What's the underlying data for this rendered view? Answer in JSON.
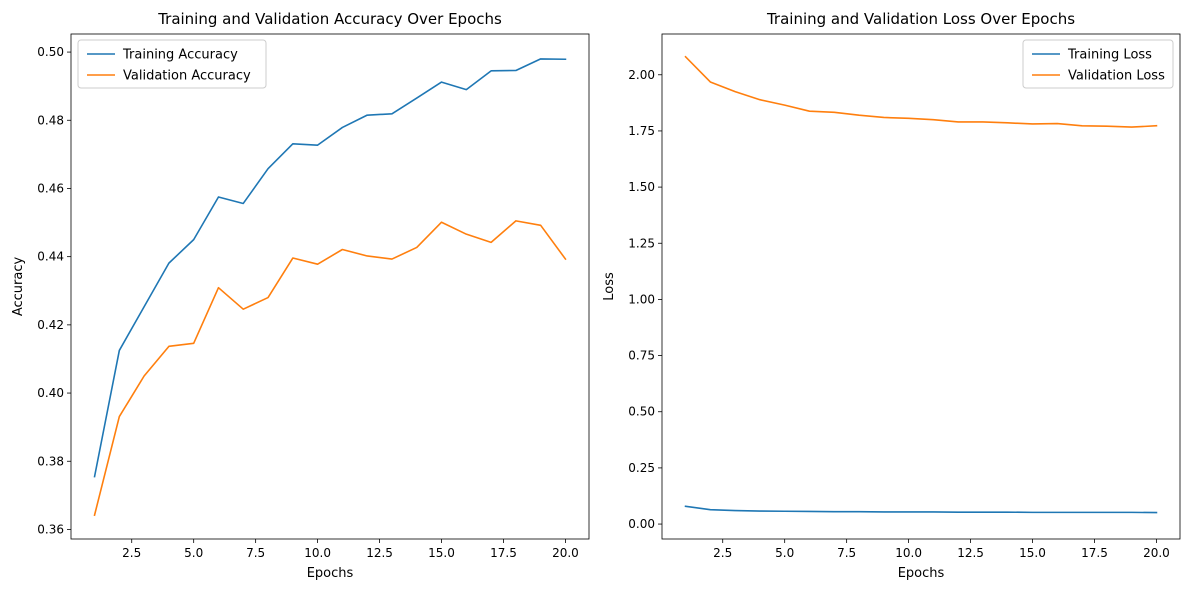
{
  "chart_data": [
    {
      "type": "line",
      "title": "Training and Validation Accuracy Over Epochs",
      "xlabel": "Epochs",
      "ylabel": "Accuracy",
      "xlim": [
        0.05,
        20.95
      ],
      "ylim": [
        0.3572,
        0.5053
      ],
      "xticks": [
        2.5,
        5.0,
        7.5,
        10.0,
        12.5,
        15.0,
        17.5,
        20.0
      ],
      "xtick_labels": [
        "2.5",
        "5.0",
        "7.5",
        "10.0",
        "12.5",
        "15.0",
        "17.5",
        "20.0"
      ],
      "yticks": [
        0.36,
        0.38,
        0.4,
        0.42,
        0.44,
        0.46,
        0.48,
        0.5
      ],
      "ytick_labels": [
        "0.36",
        "0.38",
        "0.40",
        "0.42",
        "0.44",
        "0.46",
        "0.48",
        "0.50"
      ],
      "legend_position": "upper-left",
      "x": [
        1,
        2,
        3,
        4,
        5,
        6,
        7,
        8,
        9,
        10,
        11,
        12,
        13,
        14,
        15,
        16,
        17,
        18,
        19,
        20
      ],
      "series": [
        {
          "name": "Training Accuracy",
          "color": "#1f77b4",
          "values": [
            0.3755,
            0.4125,
            0.4253,
            0.4381,
            0.445,
            0.4575,
            0.4556,
            0.4658,
            0.4731,
            0.4727,
            0.4779,
            0.4815,
            0.4819,
            0.4865,
            0.4912,
            0.489,
            0.4945,
            0.4946,
            0.498,
            0.4979
          ]
        },
        {
          "name": "Validation Accuracy",
          "color": "#ff7f0e",
          "values": [
            0.3642,
            0.3931,
            0.405,
            0.4137,
            0.4146,
            0.4309,
            0.4246,
            0.428,
            0.4396,
            0.4378,
            0.4421,
            0.4402,
            0.4393,
            0.4427,
            0.4501,
            0.4466,
            0.4442,
            0.4505,
            0.4492,
            0.4393
          ]
        }
      ]
    },
    {
      "type": "line",
      "title": "Training and Validation Loss Over Epochs",
      "xlabel": "Epochs",
      "ylabel": "Loss",
      "xlim": [
        0.05,
        20.95
      ],
      "ylim": [
        -0.0665,
        2.1815
      ],
      "xticks": [
        2.5,
        5.0,
        7.5,
        10.0,
        12.5,
        15.0,
        17.5,
        20.0
      ],
      "xtick_labels": [
        "2.5",
        "5.0",
        "7.5",
        "10.0",
        "12.5",
        "15.0",
        "17.5",
        "20.0"
      ],
      "yticks": [
        0.0,
        0.25,
        0.5,
        0.75,
        1.0,
        1.25,
        1.5,
        1.75,
        2.0
      ],
      "ytick_labels": [
        "0.00",
        "0.25",
        "0.50",
        "0.75",
        "1.00",
        "1.25",
        "1.50",
        "1.75",
        "2.00"
      ],
      "legend_position": "upper-right",
      "x": [
        1,
        2,
        3,
        4,
        5,
        6,
        7,
        8,
        9,
        10,
        11,
        12,
        13,
        14,
        15,
        16,
        17,
        18,
        19,
        20
      ],
      "series": [
        {
          "name": "Training Loss",
          "color": "#1f77b4",
          "values": [
            0.079,
            0.064,
            0.06,
            0.058,
            0.057,
            0.056,
            0.055,
            0.055,
            0.054,
            0.054,
            0.054,
            0.053,
            0.053,
            0.053,
            0.052,
            0.052,
            0.052,
            0.052,
            0.052,
            0.051
          ]
        },
        {
          "name": "Validation Loss",
          "color": "#ff7f0e",
          "values": [
            2.08,
            1.968,
            1.925,
            1.889,
            1.865,
            1.838,
            1.833,
            1.82,
            1.81,
            1.806,
            1.8,
            1.79,
            1.79,
            1.786,
            1.781,
            1.783,
            1.773,
            1.771,
            1.767,
            1.773
          ]
        }
      ]
    }
  ]
}
